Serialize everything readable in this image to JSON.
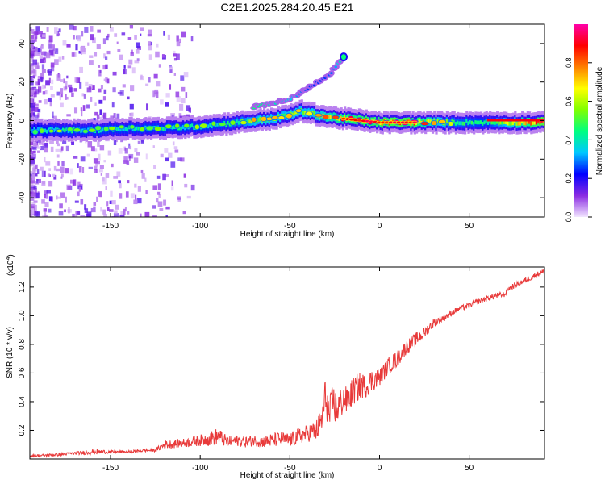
{
  "figure_title": "C2E1.2025.284.20.45.E21",
  "chart_data": [
    {
      "type": "heatmap",
      "title": "C2E1.2025.284.20.45.E21",
      "xlabel": "Height of straight line (km)",
      "ylabel": "Frequency (Hz)",
      "xlim": [
        -195,
        92
      ],
      "ylim": [
        -50,
        50
      ],
      "xticks": [
        -150,
        -100,
        -50,
        0,
        50
      ],
      "xtick_labels": [
        "-150",
        "-100",
        "-50",
        "0",
        "50"
      ],
      "yticks": [
        -40,
        -20,
        0,
        20,
        40
      ],
      "ytick_labels": [
        "-40",
        "-20",
        "0",
        "20",
        "40"
      ],
      "colorbar": {
        "label": "Normalized spectral amplitude",
        "range": [
          0,
          1
        ],
        "ticks": [
          0.0,
          0.2,
          0.4,
          0.6,
          0.8
        ],
        "tick_labels": [
          "0.0",
          "0.2",
          "0.4",
          "0.6",
          "0.8"
        ],
        "colormap": [
          "#f2e6ff",
          "#8a2be2",
          "#0000ff",
          "#00c8ff",
          "#00ff80",
          "#80ff00",
          "#ffff00",
          "#ff8000",
          "#ff0000",
          "#ff00aa"
        ]
      },
      "main_band": {
        "x": [
          -195,
          -180,
          -160,
          -140,
          -120,
          -100,
          -90,
          -80,
          -70,
          -60,
          -50,
          -45,
          -40,
          -30,
          -20,
          -10,
          0,
          10,
          20,
          40,
          60,
          92
        ],
        "freq": [
          -5,
          -5,
          -5,
          -4,
          -4,
          -3,
          -2,
          -1,
          0,
          1,
          3,
          5,
          4,
          2,
          1,
          0,
          -1,
          -1,
          -1,
          -1,
          -1,
          -1
        ],
        "amplitude": [
          0.4,
          0.45,
          0.45,
          0.45,
          0.45,
          0.45,
          0.45,
          0.5,
          0.6,
          0.6,
          0.6,
          0.6,
          0.6,
          0.7,
          0.8,
          0.85,
          0.85,
          0.9,
          0.85,
          0.5,
          0.45,
          0.95
        ]
      },
      "upper_branch": {
        "x": [
          -70,
          -60,
          -50,
          -45,
          -40,
          -30,
          -25,
          -20
        ],
        "freq": [
          7,
          9,
          11,
          14,
          17,
          22,
          27,
          33
        ],
        "amplitude": [
          0.45,
          0.4,
          0.35,
          0.3,
          0.25,
          0.25,
          0.3,
          0.45
        ]
      }
    },
    {
      "type": "line",
      "xlabel": "Height of straight line (km)",
      "ylabel": "SNR (10 * v/v)",
      "y_multiplier": "(x10^4)",
      "y_multiplier_base": "(x10",
      "y_multiplier_exp": "4",
      "xlim": [
        -195,
        92
      ],
      "ylim": [
        0,
        1.34
      ],
      "xticks": [
        -150,
        -100,
        -50,
        0,
        50
      ],
      "xtick_labels": [
        "-150",
        "-100",
        "-50",
        "0",
        "50"
      ],
      "yticks": [
        0.2,
        0.4,
        0.6,
        0.8,
        1.0,
        1.2
      ],
      "ytick_labels": [
        "0.2",
        "0.4",
        "0.6",
        "0.8",
        "1.0",
        "1.2"
      ],
      "line_color": "#e83a3a",
      "series": [
        {
          "name": "SNR",
          "x": [
            -195,
            -180,
            -170,
            -160,
            -150,
            -140,
            -130,
            -125,
            -120,
            -110,
            -100,
            -95,
            -90,
            -85,
            -80,
            -75,
            -70,
            -65,
            -60,
            -55,
            -50,
            -45,
            -40,
            -35,
            -32,
            -30,
            -28,
            -26,
            -24,
            -22,
            -20,
            -18,
            -16,
            -14,
            -12,
            -10,
            -8,
            -6,
            -4,
            -2,
            0,
            5,
            10,
            15,
            20,
            25,
            30,
            35,
            40,
            45,
            50,
            55,
            60,
            65,
            70,
            72,
            75,
            80,
            85,
            90,
            92
          ],
          "values": [
            0.02,
            0.03,
            0.04,
            0.05,
            0.05,
            0.05,
            0.06,
            0.06,
            0.1,
            0.11,
            0.13,
            0.14,
            0.16,
            0.12,
            0.13,
            0.12,
            0.13,
            0.12,
            0.13,
            0.14,
            0.13,
            0.16,
            0.18,
            0.2,
            0.28,
            0.45,
            0.3,
            0.4,
            0.35,
            0.38,
            0.42,
            0.4,
            0.45,
            0.48,
            0.5,
            0.52,
            0.5,
            0.53,
            0.55,
            0.56,
            0.57,
            0.65,
            0.7,
            0.78,
            0.83,
            0.88,
            0.95,
            0.98,
            1.02,
            1.05,
            1.07,
            1.1,
            1.12,
            1.14,
            1.15,
            1.19,
            1.21,
            1.24,
            1.27,
            1.3,
            1.31
          ],
          "noise_amplitude": [
            0.01,
            0.01,
            0.01,
            0.02,
            0.01,
            0.01,
            0.01,
            0.01,
            0.03,
            0.03,
            0.04,
            0.05,
            0.06,
            0.04,
            0.04,
            0.04,
            0.04,
            0.04,
            0.05,
            0.05,
            0.05,
            0.06,
            0.06,
            0.08,
            0.1,
            0.15,
            0.12,
            0.14,
            0.12,
            0.12,
            0.1,
            0.1,
            0.1,
            0.1,
            0.1,
            0.1,
            0.08,
            0.08,
            0.08,
            0.08,
            0.06,
            0.06,
            0.06,
            0.05,
            0.05,
            0.04,
            0.03,
            0.03,
            0.02,
            0.02,
            0.02,
            0.02,
            0.02,
            0.02,
            0.02,
            0.02,
            0.02,
            0.02,
            0.02,
            0.02,
            0.02
          ]
        }
      ]
    }
  ]
}
